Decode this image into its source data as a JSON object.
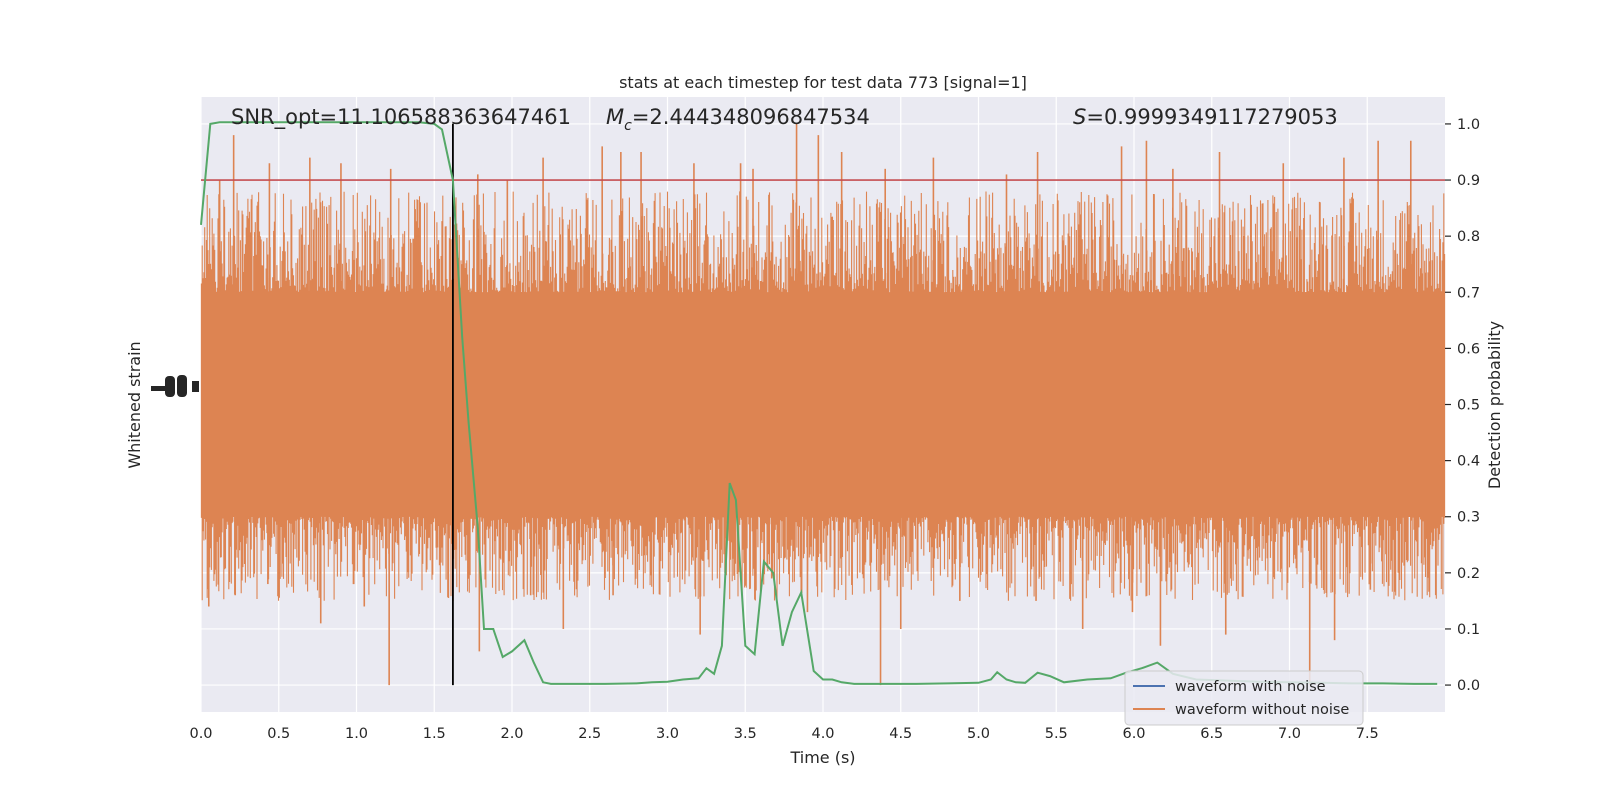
{
  "chart_data": {
    "type": "line",
    "title": "stats at each timestep for test data 773 [signal=1]",
    "xlabel": "Time (s)",
    "ylabel_left": "Whitened strain",
    "ylabel_right": "Detection probability",
    "xlim": [
      0.0,
      8.0
    ],
    "ylim_right": [
      -0.048,
      1.048
    ],
    "x_ticks": [
      "0.0",
      "0.5",
      "1.0",
      "1.5",
      "2.0",
      "2.5",
      "3.0",
      "3.5",
      "4.0",
      "4.5",
      "5.0",
      "5.5",
      "6.0",
      "6.5",
      "7.0",
      "7.5"
    ],
    "x_tick_values": [
      0.0,
      0.5,
      1.0,
      1.5,
      2.0,
      2.5,
      3.0,
      3.5,
      4.0,
      4.5,
      5.0,
      5.5,
      6.0,
      6.5,
      7.0,
      7.5
    ],
    "y_ticks_right": [
      "0.0",
      "0.1",
      "0.2",
      "0.3",
      "0.4",
      "0.5",
      "0.6",
      "0.7",
      "0.8",
      "0.9",
      "1.0"
    ],
    "y_tick_values_right": [
      0.0,
      0.1,
      0.2,
      0.3,
      0.4,
      0.5,
      0.6,
      0.7,
      0.8,
      0.9,
      1.0
    ],
    "grid": true,
    "legend_placement": "lower-right",
    "annotations": {
      "snr": "SNR_opt=11.106588363647461",
      "mc_value": "=2.444348096847534",
      "s_value": "=0.9999349117279053"
    },
    "threshold": {
      "y": 0.9,
      "color": "#c44e52"
    },
    "detection_time": 1.62,
    "series": [
      {
        "name": "waveform with noise",
        "color": "#4c72b0"
      },
      {
        "name": "waveform without noise",
        "color": "#dd8452"
      }
    ],
    "noise_band": {
      "core_low": 0.3,
      "core_high": 0.7,
      "min": 0.0,
      "max": 1.0
    },
    "noise_spikes_up": [
      [
        0.12,
        0.9
      ],
      [
        0.21,
        0.98
      ],
      [
        0.44,
        0.93
      ],
      [
        0.7,
        0.94
      ],
      [
        0.9,
        0.93
      ],
      [
        1.22,
        0.92
      ],
      [
        1.78,
        0.91
      ],
      [
        1.97,
        0.9
      ],
      [
        2.2,
        0.94
      ],
      [
        2.58,
        0.96
      ],
      [
        2.7,
        0.95
      ],
      [
        2.83,
        0.95
      ],
      [
        3.17,
        0.93
      ],
      [
        3.47,
        0.93
      ],
      [
        3.55,
        0.92
      ],
      [
        3.83,
        1.0
      ],
      [
        3.97,
        0.98
      ],
      [
        4.12,
        0.95
      ],
      [
        4.4,
        0.92
      ],
      [
        4.71,
        0.94
      ],
      [
        5.18,
        0.91
      ],
      [
        5.38,
        0.95
      ],
      [
        5.92,
        0.96
      ],
      [
        6.08,
        0.97
      ],
      [
        6.25,
        0.92
      ],
      [
        6.55,
        0.95
      ],
      [
        6.96,
        0.93
      ],
      [
        7.35,
        0.94
      ],
      [
        7.57,
        0.97
      ],
      [
        7.78,
        0.97
      ]
    ],
    "noise_spikes_down": [
      [
        0.05,
        0.14
      ],
      [
        0.22,
        0.16
      ],
      [
        0.43,
        0.18
      ],
      [
        0.77,
        0.11
      ],
      [
        1.05,
        0.14
      ],
      [
        1.21,
        0.0
      ],
      [
        1.62,
        0.15
      ],
      [
        1.79,
        0.06
      ],
      [
        2.12,
        0.16
      ],
      [
        2.33,
        0.1
      ],
      [
        2.65,
        0.16
      ],
      [
        3.21,
        0.09
      ],
      [
        3.37,
        0.2
      ],
      [
        3.67,
        0.19
      ],
      [
        3.9,
        0.13
      ],
      [
        4.37,
        0.0
      ],
      [
        4.5,
        0.1
      ],
      [
        4.88,
        0.15
      ],
      [
        5.37,
        0.15
      ],
      [
        5.67,
        0.1
      ],
      [
        5.99,
        0.13
      ],
      [
        6.17,
        0.07
      ],
      [
        6.59,
        0.09
      ],
      [
        7.13,
        0.0
      ],
      [
        7.29,
        0.08
      ],
      [
        7.52,
        0.17
      ]
    ],
    "detection_probability": {
      "name": "detection probability",
      "color": "#55a868",
      "x": [
        0.0,
        0.06,
        0.12,
        0.2,
        0.4,
        0.6,
        0.8,
        1.0,
        1.2,
        1.4,
        1.5,
        1.55,
        1.62,
        1.68,
        1.72,
        1.78,
        1.82,
        1.88,
        1.94,
        2.0,
        2.08,
        2.14,
        2.2,
        2.25,
        2.4,
        2.6,
        2.8,
        2.9,
        3.0,
        3.1,
        3.2,
        3.25,
        3.3,
        3.35,
        3.4,
        3.44,
        3.5,
        3.56,
        3.62,
        3.68,
        3.74,
        3.8,
        3.86,
        3.94,
        4.0,
        4.06,
        4.12,
        4.2,
        4.4,
        4.6,
        4.8,
        5.0,
        5.08,
        5.12,
        5.18,
        5.24,
        5.3,
        5.38,
        5.46,
        5.55,
        5.7,
        5.85,
        5.95,
        6.05,
        6.15,
        6.25,
        6.4,
        6.6,
        6.8,
        7.0,
        7.2,
        7.4,
        7.6,
        7.8,
        7.95
      ],
      "y": [
        0.82,
        1.0,
        1.003,
        1.003,
        1.003,
        1.003,
        1.003,
        1.003,
        1.003,
        1.003,
        1.0,
        0.99,
        0.9,
        0.62,
        0.47,
        0.28,
        0.1,
        0.1,
        0.05,
        0.06,
        0.08,
        0.04,
        0.005,
        0.002,
        0.002,
        0.002,
        0.003,
        0.005,
        0.006,
        0.01,
        0.012,
        0.03,
        0.02,
        0.07,
        0.36,
        0.33,
        0.07,
        0.055,
        0.22,
        0.2,
        0.07,
        0.13,
        0.165,
        0.025,
        0.01,
        0.01,
        0.005,
        0.002,
        0.002,
        0.002,
        0.003,
        0.004,
        0.01,
        0.023,
        0.01,
        0.005,
        0.004,
        0.022,
        0.016,
        0.005,
        0.01,
        0.012,
        0.022,
        0.03,
        0.04,
        0.02,
        0.01,
        0.008,
        0.006,
        0.005,
        0.004,
        0.003,
        0.003,
        0.002,
        0.002
      ]
    }
  }
}
